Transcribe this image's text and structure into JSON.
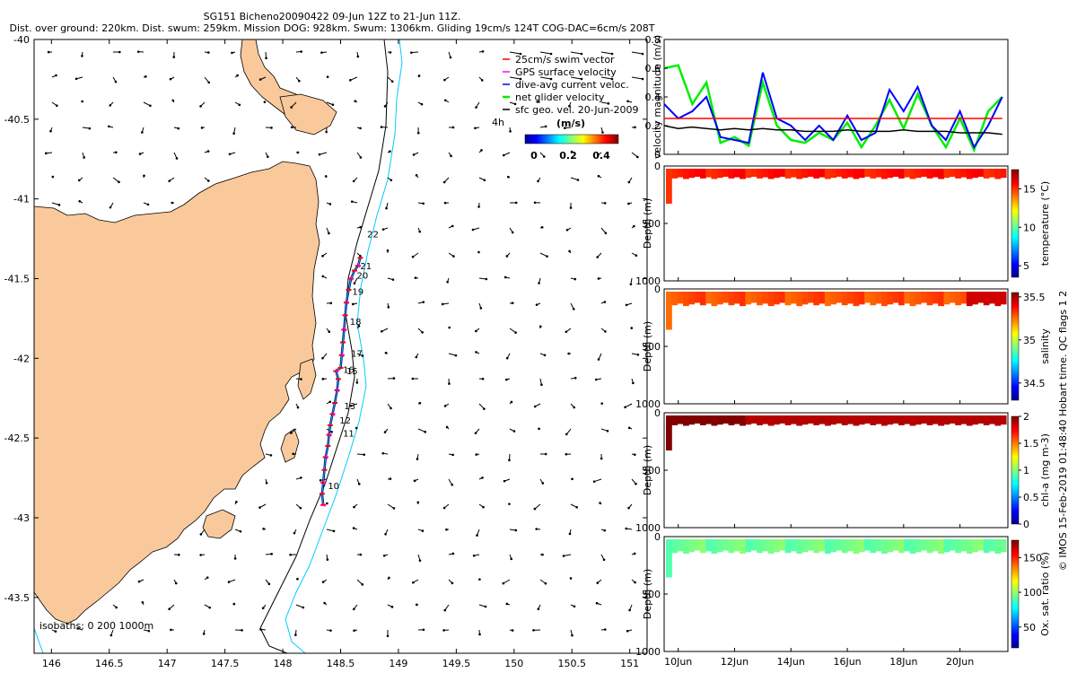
{
  "header": {
    "line1": "SG151 Bicheno20090422 09-Jun 12Z to 21-Jun 11Z.",
    "line2": "Dist. over ground: 220km. Dist. swum: 259km. Mission DOG: 928km. Swum: 1306km. Gliding 19cm/s 124T COG-DAC=6cm/s 208T"
  },
  "colors": {
    "land": "#f9c99b",
    "swim_vector": "#ff0000",
    "gps_velocity": "#ff00ff",
    "dive_avg": "#0000ff",
    "net_glider": "#00ee00",
    "sfc_geo": "#000000",
    "isobath_200": "#000000",
    "isobath_1000": "#00ccff"
  },
  "footer_note": "© IMOS 15-Feb-2019 01:48:40 Hobart time. QC flags 1  2",
  "chart_data": [
    {
      "type": "scatter",
      "title": "",
      "xlim": [
        145.85,
        151.15
      ],
      "ylim": [
        -43.85,
        -40.0
      ],
      "x_ticks": [
        "146",
        "146.5",
        "147",
        "147.5",
        "148",
        "148.5",
        "149",
        "149.5",
        "150",
        "150.5",
        "151"
      ],
      "x_tick_values": [
        146,
        146.5,
        147,
        147.5,
        148,
        148.5,
        149,
        149.5,
        150,
        150.5,
        151
      ],
      "y_ticks": [
        "-40",
        "-40.5",
        "-41",
        "-41.5",
        "-42",
        "-42.5",
        "-43",
        "-43.5"
      ],
      "y_tick_values": [
        -40,
        -40.5,
        -41,
        -41.5,
        -42,
        -42.5,
        -43,
        -43.5
      ],
      "legend": {
        "placement": "top-right",
        "entries": [
          "25cm/s swim vector",
          "GPS surface velocity",
          "dive-avg current veloc.",
          "net glider velocity",
          "sfc geo. vel. 20-Jun-2009"
        ]
      },
      "colorbar": {
        "label": "(m/s)",
        "ticks": [
          "0",
          "0.2",
          "0.4"
        ],
        "range": [
          0,
          0.5
        ]
      },
      "time_marker": "4h",
      "isobath_label": "isobaths: 0   200   1000m",
      "day_labels": [
        {
          "label": "22",
          "lon": 148.73,
          "lat": -41.24
        },
        {
          "label": "21",
          "lon": 148.67,
          "lat": -41.44
        },
        {
          "label": "20",
          "lon": 148.64,
          "lat": -41.5
        },
        {
          "label": "19",
          "lon": 148.6,
          "lat": -41.6
        },
        {
          "label": "18",
          "lon": 148.58,
          "lat": -41.79
        },
        {
          "label": "17",
          "lon": 148.59,
          "lat": -41.99
        },
        {
          "label": "16",
          "lon": 148.52,
          "lat": -42.09
        },
        {
          "label": "15",
          "lon": 148.55,
          "lat": -42.1
        },
        {
          "label": "13",
          "lon": 148.53,
          "lat": -42.32
        },
        {
          "label": "12",
          "lon": 148.49,
          "lat": -42.41
        },
        {
          "label": "11",
          "lon": 148.52,
          "lat": -42.49
        },
        {
          "label": "10",
          "lon": 148.39,
          "lat": -42.82
        }
      ],
      "track": [
        [
          148.35,
          -42.92
        ],
        [
          148.34,
          -42.85
        ],
        [
          148.35,
          -42.78
        ],
        [
          148.36,
          -42.7
        ],
        [
          148.37,
          -42.62
        ],
        [
          148.39,
          -42.55
        ],
        [
          148.4,
          -42.48
        ],
        [
          148.41,
          -42.42
        ],
        [
          148.43,
          -42.35
        ],
        [
          148.45,
          -42.28
        ],
        [
          148.47,
          -42.2
        ],
        [
          148.48,
          -42.13
        ],
        [
          148.46,
          -42.08
        ],
        [
          148.5,
          -42.06
        ],
        [
          148.51,
          -41.98
        ],
        [
          148.52,
          -41.9
        ],
        [
          148.53,
          -41.82
        ],
        [
          148.54,
          -41.73
        ],
        [
          148.55,
          -41.65
        ],
        [
          148.57,
          -41.57
        ],
        [
          148.59,
          -41.5
        ],
        [
          148.62,
          -41.45
        ],
        [
          148.65,
          -41.42
        ],
        [
          148.67,
          -41.37
        ]
      ]
    },
    {
      "type": "line",
      "title": "",
      "ylabel": "velocity magnitude (m/s)",
      "ylim": [
        0,
        0.8
      ],
      "y_ticks": [
        "0",
        "0.2",
        "0.4",
        "0.6",
        "0.8"
      ],
      "x": [
        9.5,
        10.0,
        10.5,
        11.0,
        11.5,
        12.0,
        12.5,
        13.0,
        13.5,
        14.0,
        14.5,
        15.0,
        15.5,
        16.0,
        16.5,
        17.0,
        17.5,
        18.0,
        18.5,
        19.0,
        19.5,
        20.0,
        20.5,
        21.0,
        21.5
      ],
      "series": [
        {
          "name": "net glider velocity",
          "color": "#00ee00",
          "values": [
            0.6,
            0.62,
            0.35,
            0.5,
            0.08,
            0.12,
            0.06,
            0.5,
            0.2,
            0.1,
            0.08,
            0.15,
            0.1,
            0.22,
            0.05,
            0.2,
            0.38,
            0.18,
            0.42,
            0.2,
            0.05,
            0.25,
            0.03,
            0.3,
            0.4
          ]
        },
        {
          "name": "dive-avg current veloc.",
          "color": "#0000ff",
          "values": [
            0.35,
            0.25,
            0.3,
            0.4,
            0.12,
            0.1,
            0.08,
            0.57,
            0.25,
            0.2,
            0.1,
            0.2,
            0.1,
            0.27,
            0.1,
            0.15,
            0.45,
            0.3,
            0.47,
            0.2,
            0.1,
            0.3,
            0.05,
            0.2,
            0.4
          ]
        },
        {
          "name": "25cm/s swim vector",
          "color": "#ff0000",
          "values": [
            0.25,
            0.25,
            0.25,
            0.25,
            0.25,
            0.25,
            0.25,
            0.25,
            0.25,
            0.25,
            0.25,
            0.25,
            0.25,
            0.25,
            0.25,
            0.25,
            0.25,
            0.25,
            0.25,
            0.25,
            0.25,
            0.25,
            0.25,
            0.25,
            0.25
          ]
        },
        {
          "name": "sfc geo. vel. 20-Jun-2009",
          "color": "#000000",
          "values": [
            0.2,
            0.18,
            0.19,
            0.18,
            0.17,
            0.18,
            0.17,
            0.18,
            0.17,
            0.17,
            0.16,
            0.16,
            0.16,
            0.17,
            0.16,
            0.16,
            0.16,
            0.17,
            0.16,
            0.16,
            0.16,
            0.15,
            0.15,
            0.15,
            0.14
          ]
        }
      ]
    },
    {
      "type": "heatmap",
      "title": "",
      "ylabel": "Depth (m)",
      "ylim": [
        1000,
        0
      ],
      "y_ticks": [
        "0",
        "500",
        "1000"
      ],
      "colorbar": {
        "label": "temperature (°C)",
        "ticks": [
          "5",
          "10",
          "15"
        ],
        "range": [
          3.5,
          17.5
        ]
      },
      "surface_value": 15.5,
      "max_depth_sampled": 100
    },
    {
      "type": "heatmap",
      "title": "",
      "ylabel": "Depth (m)",
      "ylim": [
        1000,
        0
      ],
      "y_ticks": [
        "0",
        "500",
        "1000"
      ],
      "colorbar": {
        "label": "salinity",
        "ticks": [
          "34.5",
          "35",
          "35.5"
        ],
        "range": [
          34.3,
          35.55
        ]
      },
      "surface_value": 35.3,
      "max_depth_sampled": 140
    },
    {
      "type": "heatmap",
      "title": "",
      "ylabel": "Depth (m)",
      "ylim": [
        1000,
        0
      ],
      "y_ticks": [
        "0",
        "500",
        "1000"
      ],
      "colorbar": {
        "label": "chl-a (mg m-3)",
        "ticks": [
          "0",
          "0.5",
          "1",
          "1.5",
          "2"
        ],
        "range": [
          0,
          2
        ]
      },
      "surface_value": 2.0,
      "max_depth_sampled": 100
    },
    {
      "type": "heatmap",
      "title": "",
      "ylabel": "Depth (m)",
      "ylim": [
        1000,
        0
      ],
      "y_ticks": [
        "0",
        "500",
        "1000"
      ],
      "colorbar": {
        "label": "Ox. sat. ratio (%)",
        "ticks": [
          "50",
          "100",
          "150"
        ],
        "range": [
          20,
          175
        ]
      },
      "surface_value": 95,
      "max_depth_sampled": 140
    },
    {
      "type": "axis",
      "x_ticks": [
        "10Jun",
        "12Jun",
        "14Jun",
        "16Jun",
        "18Jun",
        "20Jun"
      ],
      "x_tick_values": [
        10,
        12,
        14,
        16,
        18,
        20
      ],
      "xlim": [
        9.5,
        21.7
      ]
    }
  ]
}
